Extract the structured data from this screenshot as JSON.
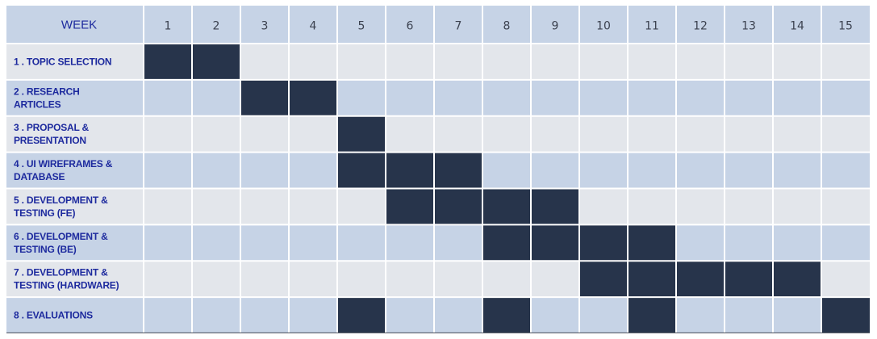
{
  "chart_data": {
    "type": "table",
    "header_label": "WEEK",
    "weeks": [
      "1",
      "2",
      "3",
      "4",
      "5",
      "6",
      "7",
      "8",
      "9",
      "10",
      "11",
      "12",
      "13",
      "14",
      "15"
    ],
    "tasks": [
      {
        "label_lines": [
          "1 . TOPIC SELECTION"
        ],
        "weeks_active": [
          1,
          2
        ]
      },
      {
        "label_lines": [
          "2 . RESEARCH",
          "ARTICLES"
        ],
        "weeks_active": [
          3,
          4
        ]
      },
      {
        "label_lines": [
          "3 . PROPOSAL &",
          "PRESENTATION"
        ],
        "weeks_active": [
          5
        ]
      },
      {
        "label_lines": [
          "4 . UI WIREFRAMES &",
          "DATABASE"
        ],
        "weeks_active": [
          5,
          6,
          7
        ]
      },
      {
        "label_lines": [
          "5 . DEVELOPMENT &",
          "TESTING (FE)"
        ],
        "weeks_active": [
          6,
          7,
          8,
          9
        ]
      },
      {
        "label_lines": [
          "6 . DEVELOPMENT &",
          "TESTING (BE)"
        ],
        "weeks_active": [
          8,
          9,
          10,
          11
        ]
      },
      {
        "label_lines": [
          "7 . DEVELOPMENT &",
          "TESTING (HARDWARE)"
        ],
        "weeks_active": [
          10,
          11,
          12,
          13,
          14
        ]
      },
      {
        "label_lines": [
          "8 . EVALUATIONS"
        ],
        "weeks_active": [
          5,
          8,
          11,
          15
        ]
      }
    ]
  },
  "colors": {
    "header_bg": "#c6d3e6",
    "row_light": "#e3e6eb",
    "row_blue": "#c6d3e6",
    "active_cell": "#27344b",
    "header_text": "#1d2a9e",
    "week_text": "#3c4250",
    "task_text": "#1d2a9e",
    "grid": "#ffffff",
    "bottom_border": "#5a5f6a"
  }
}
